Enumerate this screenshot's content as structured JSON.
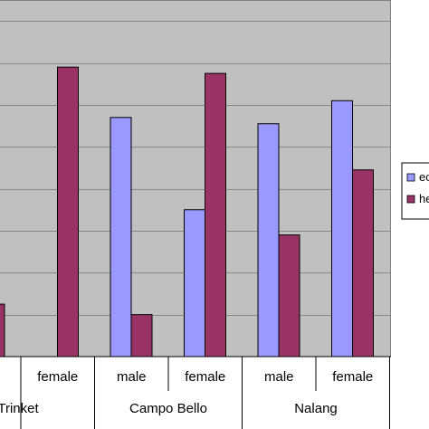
{
  "chart_data": {
    "type": "bar",
    "ylim": [
      0,
      8.5
    ],
    "grid": true,
    "legend_position": "right",
    "plot_background": "#c0c0c0",
    "categories": [
      {
        "group": "Trinket",
        "sex": "female"
      },
      {
        "group": "Campo Bello",
        "sex": "male"
      },
      {
        "group": "Campo Bello",
        "sex": "female"
      },
      {
        "group": "Nalang",
        "sex": "male"
      },
      {
        "group": "Nalang",
        "sex": "female"
      }
    ],
    "category_labels": [
      "female",
      "male",
      "female",
      "male",
      "female"
    ],
    "groups": [
      "Trinket",
      "Campo Bello",
      "Nalang"
    ],
    "series": [
      {
        "name": "ec",
        "color": "#9999ff",
        "values": [
          0,
          5.7,
          3.5,
          5.55,
          6.1
        ]
      },
      {
        "name": "he",
        "color": "#993366",
        "values": [
          6.9,
          1.0,
          6.75,
          2.9,
          4.45
        ]
      }
    ],
    "partial_first_bar": {
      "series": "he",
      "value": 1.25
    }
  }
}
